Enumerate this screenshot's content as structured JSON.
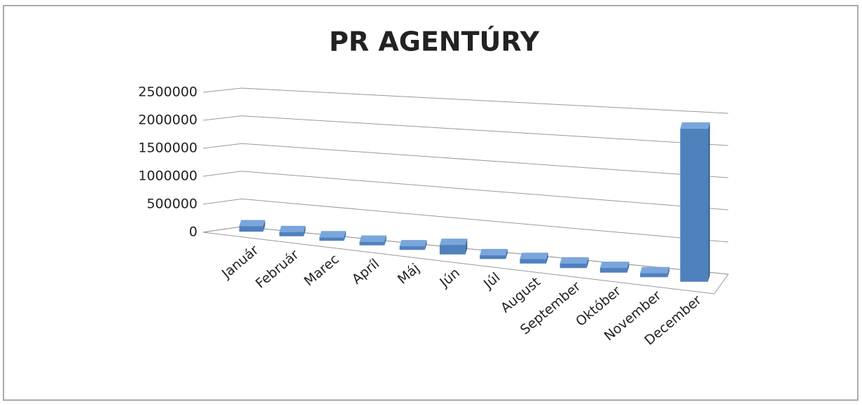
{
  "chart_data": {
    "type": "bar3d",
    "title": "PR AGENTÚRY",
    "categories": [
      "Január",
      "Február",
      "Marec",
      "Apríl",
      "Máj",
      "Jún",
      "Júl",
      "August",
      "September",
      "Október",
      "November",
      "December"
    ],
    "values": [
      80000,
      60000,
      50000,
      50000,
      50000,
      130000,
      50000,
      60000,
      60000,
      60000,
      50000,
      1900000
    ],
    "color": "#4f81bd",
    "ylim": [
      0,
      2500000
    ],
    "yticks": [
      0,
      500000,
      1000000,
      1500000,
      2000000,
      2500000
    ],
    "grid": true
  }
}
